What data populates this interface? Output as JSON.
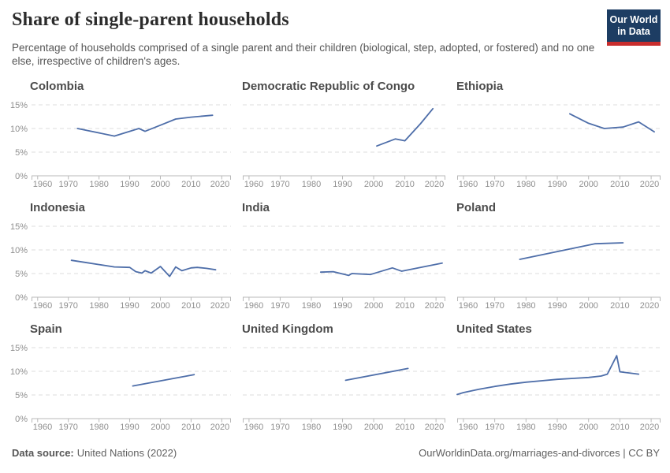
{
  "header": {
    "title": "Share of single-parent households",
    "subtitle": "Percentage of households comprised of a single parent and their children (biological, step, adopted, or fostered) and no one else, irrespective of children's ages.",
    "logo_line1": "Our World",
    "logo_line2": "in Data"
  },
  "axes": {
    "xlim": [
      1958,
      2023
    ],
    "ylim": [
      0,
      15
    ],
    "xticks": [
      1960,
      1970,
      1980,
      1990,
      2000,
      2010,
      2020
    ],
    "yticks": [
      0,
      5,
      10,
      15
    ],
    "ytick_suffix": "%",
    "grid": "dashed-horizontal",
    "y_labels_on_first_column_only": true
  },
  "chart_data": [
    {
      "type": "line",
      "title": "Colombia",
      "points": [
        [
          1973,
          10.0
        ],
        [
          1985,
          8.4
        ],
        [
          1993,
          10.0
        ],
        [
          1995,
          9.4
        ],
        [
          2000,
          10.7
        ],
        [
          2005,
          12.0
        ],
        [
          2010,
          12.4
        ],
        [
          2017,
          12.8
        ]
      ]
    },
    {
      "type": "line",
      "title": "Democratic Republic of Congo",
      "points": [
        [
          2001,
          6.3
        ],
        [
          2007,
          7.8
        ],
        [
          2010,
          7.4
        ],
        [
          2015,
          11.0
        ],
        [
          2019,
          14.2
        ]
      ]
    },
    {
      "type": "line",
      "title": "Ethiopia",
      "points": [
        [
          1994,
          13.1
        ],
        [
          2000,
          11.1
        ],
        [
          2005,
          10.0
        ],
        [
          2011,
          10.3
        ],
        [
          2016,
          11.4
        ],
        [
          2021,
          9.3
        ]
      ]
    },
    {
      "type": "line",
      "title": "Indonesia",
      "points": [
        [
          1971,
          7.8
        ],
        [
          1976,
          7.3
        ],
        [
          1980,
          6.9
        ],
        [
          1985,
          6.4
        ],
        [
          1990,
          6.3
        ],
        [
          1992,
          5.4
        ],
        [
          1994,
          5.1
        ],
        [
          1995,
          5.6
        ],
        [
          1997,
          5.1
        ],
        [
          2000,
          6.5
        ],
        [
          2003,
          4.4
        ],
        [
          2005,
          6.4
        ],
        [
          2007,
          5.6
        ],
        [
          2010,
          6.2
        ],
        [
          2012,
          6.3
        ],
        [
          2015,
          6.1
        ],
        [
          2018,
          5.8
        ]
      ]
    },
    {
      "type": "line",
      "title": "India",
      "points": [
        [
          1983,
          5.3
        ],
        [
          1987,
          5.4
        ],
        [
          1992,
          4.6
        ],
        [
          1993,
          5.0
        ],
        [
          1999,
          4.8
        ],
        [
          2006,
          6.2
        ],
        [
          2009,
          5.5
        ],
        [
          2015,
          6.3
        ],
        [
          2022,
          7.2
        ]
      ]
    },
    {
      "type": "line",
      "title": "Poland",
      "points": [
        [
          1978,
          8.0
        ],
        [
          2002,
          11.3
        ],
        [
          2011,
          11.5
        ]
      ]
    },
    {
      "type": "line",
      "title": "Spain",
      "points": [
        [
          1991,
          6.9
        ],
        [
          2011,
          9.3
        ]
      ]
    },
    {
      "type": "line",
      "title": "United Kingdom",
      "points": [
        [
          1991,
          8.1
        ],
        [
          2011,
          10.6
        ]
      ]
    },
    {
      "type": "line",
      "title": "United States",
      "points": [
        [
          1958,
          5.1
        ],
        [
          1960,
          5.5
        ],
        [
          1965,
          6.2
        ],
        [
          1970,
          6.8
        ],
        [
          1975,
          7.3
        ],
        [
          1980,
          7.7
        ],
        [
          1985,
          8.0
        ],
        [
          1990,
          8.3
        ],
        [
          1995,
          8.5
        ],
        [
          2000,
          8.7
        ],
        [
          2004,
          9.0
        ],
        [
          2006,
          9.4
        ],
        [
          2009,
          13.3
        ],
        [
          2010,
          9.9
        ],
        [
          2016,
          9.4
        ]
      ]
    }
  ],
  "footer": {
    "source_label": "Data source:",
    "source_value": "United Nations (2022)",
    "credit": "OurWorldinData.org/marriages-and-divorces | CC BY"
  },
  "colors": {
    "line": "#4e6ea9",
    "grid": "#dcdcdc",
    "axis": "#b9b9b9",
    "tick_label": "#8f8f8f",
    "title": "#2b2b2b",
    "subtitle": "#575757",
    "country_title": "#4c4c4c",
    "logo_bg": "#1d3d63",
    "logo_accent": "#c82d2d"
  }
}
